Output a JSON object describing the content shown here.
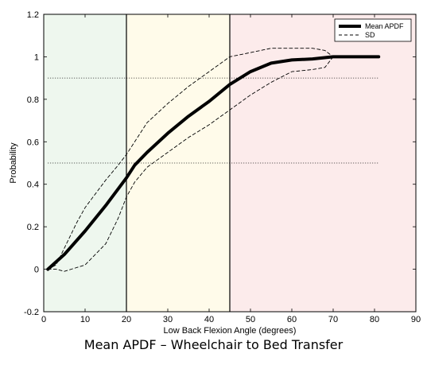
{
  "chart_data": {
    "type": "line",
    "xlabel": "Low Back Flexion Angle (degrees)",
    "ylabel": "Probability",
    "xlim": [
      0,
      90
    ],
    "ylim": [
      -0.2,
      1.2
    ],
    "x_ticks": [
      0,
      10,
      20,
      30,
      40,
      50,
      60,
      70,
      80,
      90
    ],
    "y_ticks": [
      -0.2,
      0,
      0.2,
      0.4,
      0.6,
      0.8,
      1,
      1.2
    ],
    "y_tick_labels": [
      "-0.2",
      "0",
      "0.2",
      "0.4",
      "0.6",
      "0.8",
      "1",
      "1.2"
    ],
    "grid": false,
    "legend_position": "top-right",
    "regions": [
      {
        "x_start": 0,
        "x_end": 20,
        "color": "#eef7ee"
      },
      {
        "x_start": 20,
        "x_end": 45,
        "color": "#fffbea"
      },
      {
        "x_start": 45,
        "x_end": 90,
        "color": "#fcebeb"
      }
    ],
    "vertical_lines": [
      20,
      45
    ],
    "reference_lines": [
      {
        "y": 0.9,
        "x_start": 1,
        "x_end": 81,
        "style": "dotted"
      },
      {
        "y": 0.5,
        "x_start": 1,
        "x_end": 81,
        "style": "dotted"
      }
    ],
    "series": [
      {
        "name": "Mean APDF",
        "style": "thick-solid",
        "x": [
          1,
          5,
          10,
          15,
          20,
          22,
          25,
          30,
          35,
          40,
          45,
          50,
          55,
          60,
          65,
          70,
          75,
          81
        ],
        "y": [
          0.0,
          0.07,
          0.18,
          0.3,
          0.43,
          0.49,
          0.55,
          0.64,
          0.72,
          0.79,
          0.87,
          0.93,
          0.97,
          0.985,
          0.99,
          1.0,
          1.0,
          1.0
        ]
      },
      {
        "name": "SD",
        "style": "dashed",
        "x": [
          1,
          3,
          5,
          8,
          10,
          15,
          18,
          20,
          23,
          25,
          30,
          35,
          40,
          45,
          50,
          55,
          60,
          65,
          68,
          70,
          75,
          81
        ],
        "y": [
          0.0,
          0.02,
          0.1,
          0.22,
          0.29,
          0.42,
          0.49,
          0.54,
          0.63,
          0.69,
          0.78,
          0.86,
          0.93,
          1.0,
          1.02,
          1.04,
          1.04,
          1.04,
          1.03,
          1.0,
          1.0,
          1.0
        ]
      },
      {
        "name": "",
        "style": "dashed",
        "x": [
          1,
          3,
          5,
          10,
          15,
          18,
          20,
          22,
          25,
          30,
          35,
          40,
          45,
          50,
          55,
          60,
          65,
          68,
          70,
          75,
          81
        ],
        "y": [
          0.0,
          0.0,
          -0.01,
          0.02,
          0.12,
          0.24,
          0.34,
          0.41,
          0.48,
          0.55,
          0.62,
          0.68,
          0.75,
          0.82,
          0.88,
          0.93,
          0.94,
          0.95,
          1.0,
          1.0,
          1.0
        ]
      }
    ],
    "legend": [
      {
        "label": "Mean APDF",
        "style": "thick-solid"
      },
      {
        "label": "SD",
        "style": "dashed"
      }
    ]
  },
  "caption": "Mean APDF – Wheelchair to Bed Transfer"
}
